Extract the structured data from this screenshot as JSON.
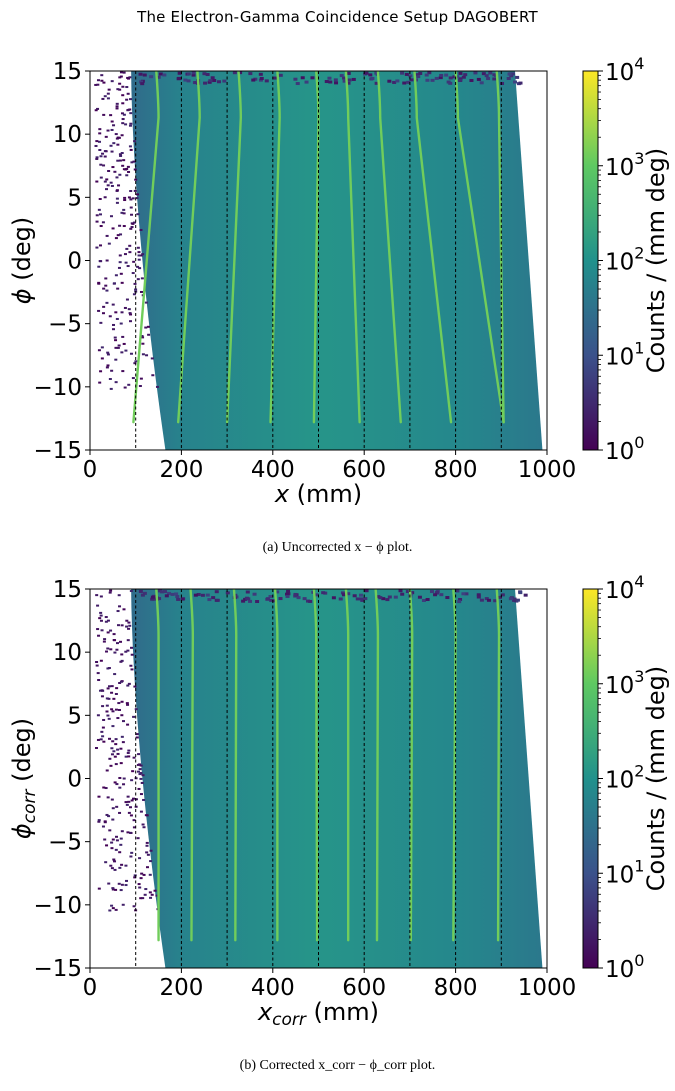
{
  "header": {
    "running_title": "The Electron-Gamma Coincidence Setup DAGOBERT"
  },
  "colormap": [
    "#440154",
    "#3b528b",
    "#21918c",
    "#5ec962",
    "#fde725"
  ],
  "chart_data": [
    {
      "type": "heatmap",
      "caption": "(a) Uncorrected x − ϕ plot.",
      "xlabel_symbol": "x",
      "xlabel_unit": " (mm)",
      "ylabel_symbol": "ϕ",
      "ylabel_unit": " (deg)",
      "xlim": [
        0,
        1000
      ],
      "ylim": [
        -15,
        15
      ],
      "xticks": [
        "0",
        "200",
        "400",
        "600",
        "800",
        "1000"
      ],
      "yticks": [
        "−15",
        "−10",
        "−5",
        "0",
        "5",
        "10",
        "15"
      ],
      "colorbar": {
        "label": "Counts / (mm deg)",
        "scale": "log",
        "range": [
          1,
          10000
        ],
        "ticks": [
          {
            "base": "10",
            "exp": "0"
          },
          {
            "base": "10",
            "exp": "1"
          },
          {
            "base": "10",
            "exp": "2"
          },
          {
            "base": "10",
            "exp": "3"
          },
          {
            "base": "10",
            "exp": "4"
          }
        ]
      },
      "reference_lines_x": [
        100,
        200,
        300,
        400,
        500,
        600,
        700,
        800,
        900
      ],
      "ridges": [
        {
          "x_top": 150,
          "x_bottom": 95
        },
        {
          "x_top": 240,
          "x_bottom": 193
        },
        {
          "x_top": 330,
          "x_bottom": 300
        },
        {
          "x_top": 415,
          "x_bottom": 395
        },
        {
          "x_top": 500,
          "x_bottom": 490
        },
        {
          "x_top": 565,
          "x_bottom": 590
        },
        {
          "x_top": 635,
          "x_bottom": 680
        },
        {
          "x_top": 715,
          "x_bottom": 790
        },
        {
          "x_top": 805,
          "x_bottom": 905
        },
        {
          "x_top": 895,
          "x_bottom": 905
        }
      ],
      "left_edge": {
        "x_at_phi_top": 90,
        "x_at_phi_bottom": 165
      },
      "right_edge": {
        "x_at_phi_top": 930,
        "x_at_phi_bottom": 990
      }
    },
    {
      "type": "heatmap",
      "caption": "(b) Corrected x_corr − ϕ_corr plot.",
      "xlabel_symbol": "x",
      "xlabel_sub": "corr",
      "xlabel_unit": " (mm)",
      "ylabel_symbol": "ϕ",
      "ylabel_sub": "corr",
      "ylabel_unit": " (deg)",
      "xlim": [
        0,
        1000
      ],
      "ylim": [
        -15,
        15
      ],
      "xticks": [
        "0",
        "200",
        "400",
        "600",
        "800",
        "1000"
      ],
      "yticks": [
        "−15",
        "−10",
        "−5",
        "0",
        "5",
        "10",
        "15"
      ],
      "colorbar": {
        "label": "Counts / (mm deg)",
        "scale": "log",
        "range": [
          1,
          10000
        ],
        "ticks": [
          {
            "base": "10",
            "exp": "0"
          },
          {
            "base": "10",
            "exp": "1"
          },
          {
            "base": "10",
            "exp": "2"
          },
          {
            "base": "10",
            "exp": "3"
          },
          {
            "base": "10",
            "exp": "4"
          }
        ]
      },
      "reference_lines_x": [
        100,
        200,
        300,
        400,
        500,
        600,
        700,
        800,
        900
      ],
      "ridges": [
        {
          "x_top": 150,
          "x_bottom": 150
        },
        {
          "x_top": 225,
          "x_bottom": 222
        },
        {
          "x_top": 320,
          "x_bottom": 318
        },
        {
          "x_top": 410,
          "x_bottom": 410
        },
        {
          "x_top": 495,
          "x_bottom": 497
        },
        {
          "x_top": 565,
          "x_bottom": 565
        },
        {
          "x_top": 630,
          "x_bottom": 628
        },
        {
          "x_top": 705,
          "x_bottom": 702
        },
        {
          "x_top": 800,
          "x_bottom": 795
        },
        {
          "x_top": 895,
          "x_bottom": 893
        }
      ],
      "left_edge": {
        "x_at_phi_top": 90,
        "x_at_phi_bottom": 165
      },
      "right_edge": {
        "x_at_phi_top": 930,
        "x_at_phi_bottom": 990
      }
    }
  ]
}
